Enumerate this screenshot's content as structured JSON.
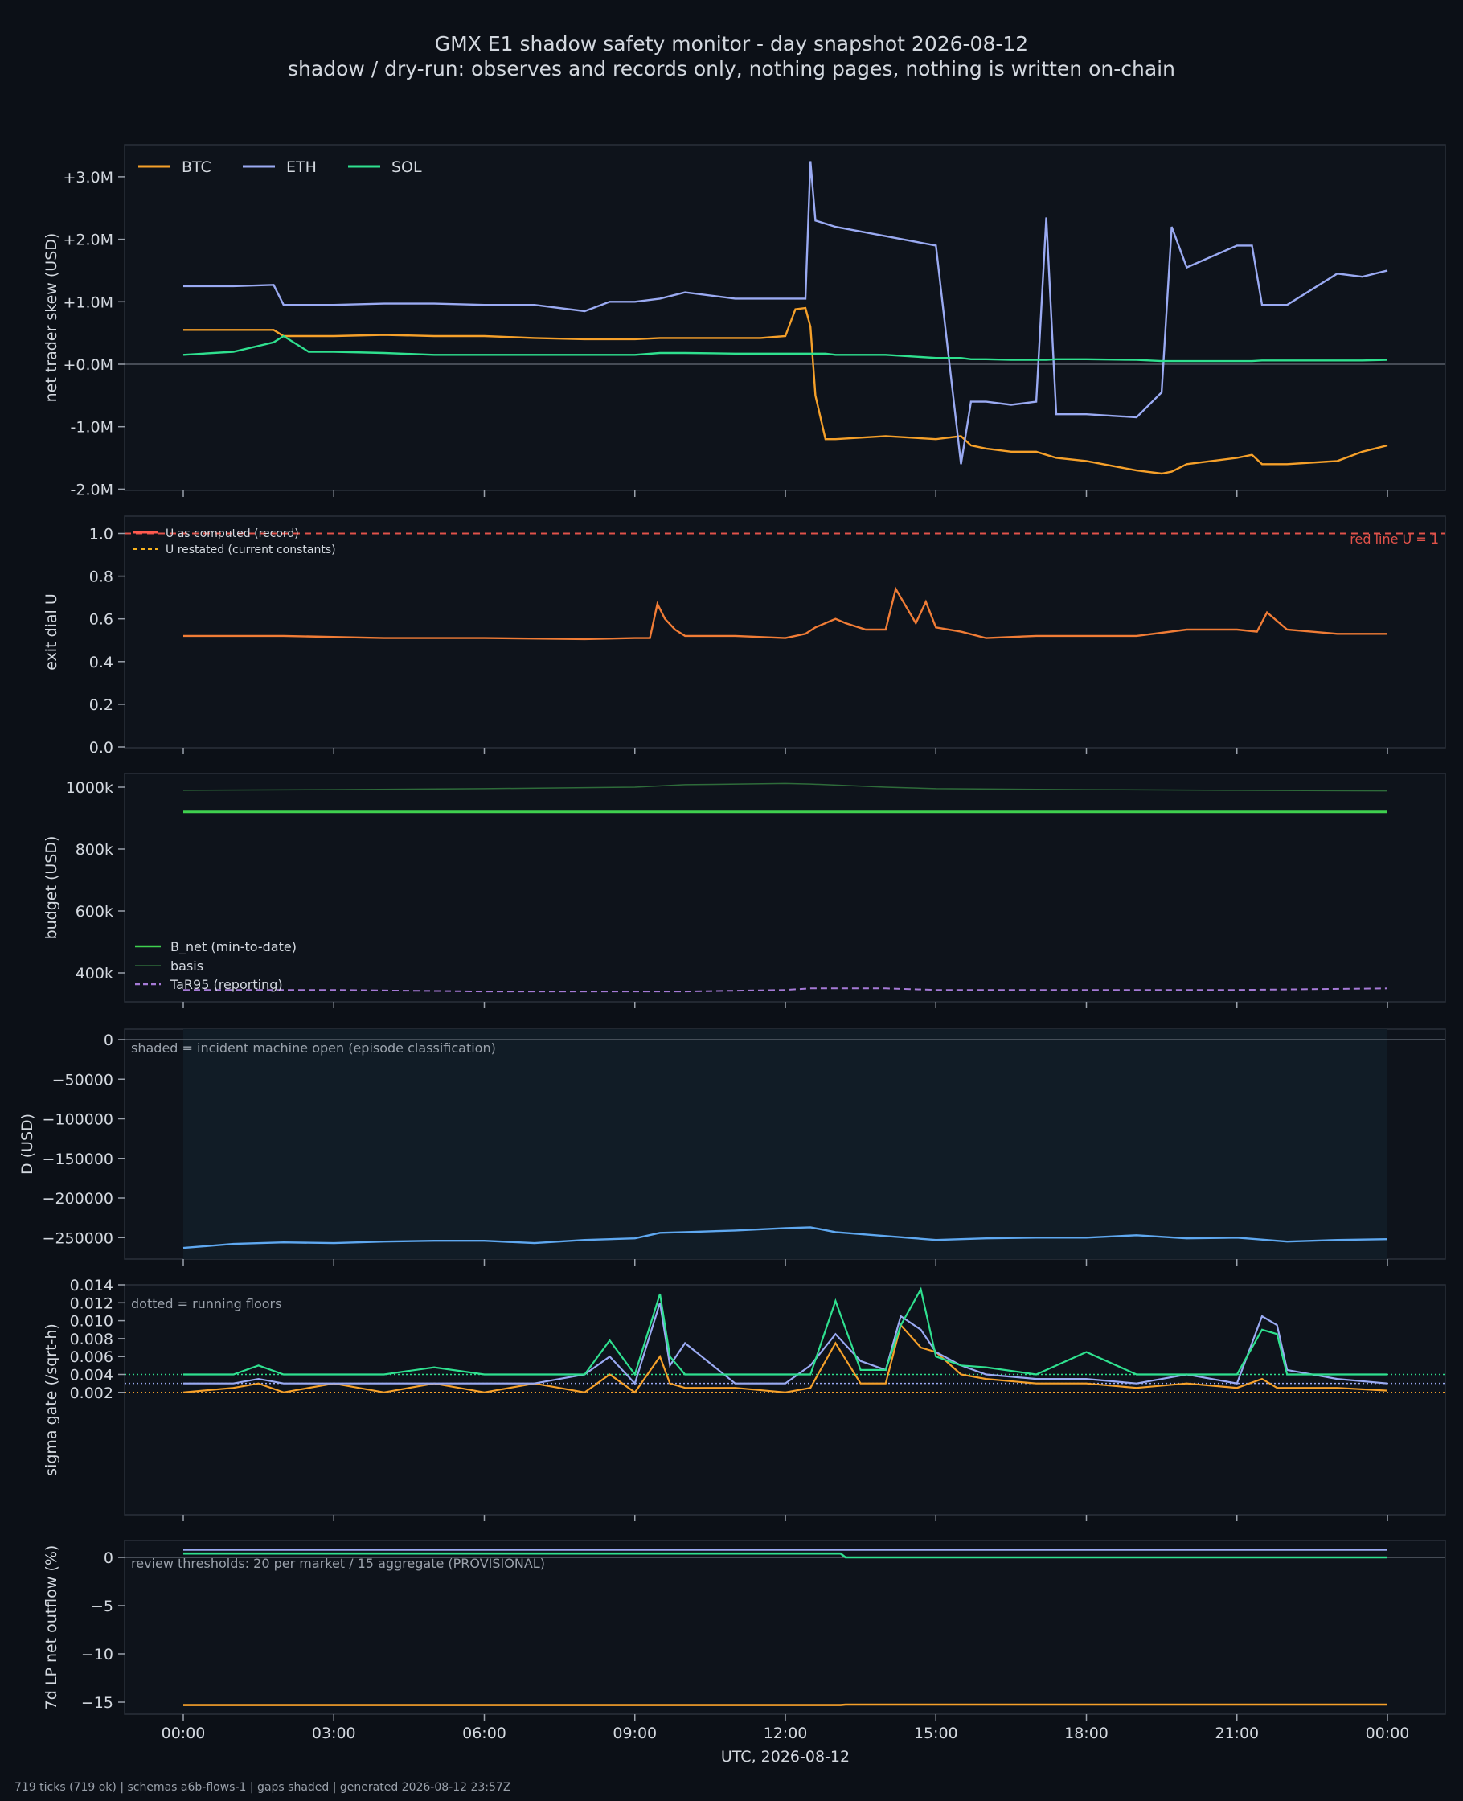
{
  "header": {
    "title": "GMX E1 shadow safety monitor - day snapshot 2026-08-12",
    "subtitle": "shadow / dry-run: observes and records only, nothing pages, nothing is written on-chain"
  },
  "footer": {
    "text": "719 ticks (719 ok) | schemas a6b-flows-1 | gaps shaded | generated 2026-08-12 23:57Z"
  },
  "colors": {
    "background": "#0c1017",
    "panel": "#0e131b",
    "btc": "#f5a02a",
    "eth": "#9aaaf2",
    "sol": "#2fe08f",
    "u_record": "#ff5a4e",
    "u_restated": "#f7b21e",
    "u_line": "#f07c36",
    "bnet": "#3fd04f",
    "basis": "#2e6b3a",
    "tar95": "#a57ad6",
    "d_line": "#5fa8f0",
    "redline": "#e0524a"
  },
  "chart_data": [
    {
      "type": "line",
      "ylabel": "net trader skew (USD)",
      "yticks": [
        "+3.0M",
        "+2.0M",
        "+1.0M",
        "+0.0M",
        "-1.0M",
        "-2.0M"
      ],
      "ylim": [
        -2.0,
        3.4
      ],
      "legend": [
        "BTC",
        "ETH",
        "SOL"
      ],
      "legend_placement": "top-left",
      "x_hours": [
        0,
        1,
        1.8,
        2,
        2.5,
        3,
        4,
        5,
        6,
        7,
        8,
        8.5,
        9,
        9.5,
        10,
        11,
        11.5,
        12,
        12.2,
        12.4,
        12.5,
        12.6,
        12.8,
        13,
        14,
        15,
        15.5,
        15.7,
        16,
        16.5,
        17,
        17.2,
        17.4,
        18,
        19,
        19.5,
        19.7,
        20,
        21,
        21.3,
        21.5,
        22,
        23,
        23.5,
        24
      ],
      "series": [
        {
          "name": "BTC",
          "values": [
            0.55,
            0.55,
            0.55,
            0.45,
            0.45,
            0.45,
            0.47,
            0.45,
            0.45,
            0.42,
            0.4,
            0.4,
            0.4,
            0.42,
            0.42,
            0.42,
            0.42,
            0.45,
            0.88,
            0.9,
            0.6,
            -0.5,
            -1.2,
            -1.2,
            -1.15,
            -1.2,
            -1.15,
            -1.3,
            -1.35,
            -1.4,
            -1.4,
            -1.45,
            -1.5,
            -1.55,
            -1.7,
            -1.75,
            -1.72,
            -1.6,
            -1.5,
            -1.45,
            -1.6,
            -1.6,
            -1.55,
            -1.4,
            -1.3
          ]
        },
        {
          "name": "ETH",
          "values": [
            1.25,
            1.25,
            1.27,
            0.95,
            0.95,
            0.95,
            0.97,
            0.97,
            0.95,
            0.95,
            0.85,
            1.0,
            1.0,
            1.05,
            1.15,
            1.05,
            1.05,
            1.05,
            1.05,
            1.05,
            3.25,
            2.3,
            2.25,
            2.2,
            2.05,
            1.9,
            -1.6,
            -0.6,
            -0.6,
            -0.65,
            -0.6,
            2.35,
            -0.8,
            -0.8,
            -0.85,
            -0.45,
            2.2,
            1.55,
            1.9,
            1.9,
            0.95,
            0.95,
            1.45,
            1.4,
            1.5
          ]
        },
        {
          "name": "SOL",
          "values": [
            0.15,
            0.2,
            0.35,
            0.45,
            0.2,
            0.2,
            0.18,
            0.15,
            0.15,
            0.15,
            0.15,
            0.15,
            0.15,
            0.18,
            0.18,
            0.17,
            0.17,
            0.17,
            0.17,
            0.17,
            0.17,
            0.17,
            0.17,
            0.15,
            0.15,
            0.1,
            0.1,
            0.08,
            0.08,
            0.07,
            0.07,
            0.07,
            0.08,
            0.08,
            0.07,
            0.05,
            0.05,
            0.05,
            0.05,
            0.05,
            0.06,
            0.06,
            0.06,
            0.06,
            0.07
          ]
        }
      ]
    },
    {
      "type": "line",
      "ylabel": "exit dial U",
      "yticks": [
        "1.0",
        "0.8",
        "0.6",
        "0.4",
        "0.2",
        "0.0"
      ],
      "ylim": [
        0.0,
        1.05
      ],
      "legend": [
        "U as computed (record)",
        "U restated (current constants)"
      ],
      "legend_placement": "top-left",
      "annotation": "red line U = 1",
      "x_hours": [
        0,
        2,
        4,
        6,
        8,
        9,
        9.3,
        9.45,
        9.6,
        9.8,
        10,
        11,
        12,
        12.4,
        12.6,
        13,
        13.2,
        13.6,
        14,
        14.2,
        14.4,
        14.6,
        14.8,
        15,
        15.5,
        16,
        17,
        18,
        19,
        20,
        21,
        21.4,
        21.6,
        22,
        23,
        24
      ],
      "series": [
        {
          "name": "U",
          "values": [
            0.52,
            0.52,
            0.51,
            0.51,
            0.505,
            0.51,
            0.51,
            0.67,
            0.6,
            0.55,
            0.52,
            0.52,
            0.51,
            0.53,
            0.56,
            0.6,
            0.58,
            0.55,
            0.55,
            0.74,
            0.66,
            0.58,
            0.68,
            0.56,
            0.54,
            0.51,
            0.52,
            0.52,
            0.52,
            0.55,
            0.55,
            0.54,
            0.63,
            0.55,
            0.53,
            0.53
          ]
        }
      ]
    },
    {
      "type": "line",
      "ylabel": "budget (USD)",
      "yticks": [
        "1000k",
        "800k",
        "600k",
        "400k"
      ],
      "ylim": [
        340,
        1020
      ],
      "legend": [
        "B_net (min-to-date)",
        "basis",
        "TaR95 (reporting)"
      ],
      "legend_placement": "bottom-left",
      "x_hours": [
        0,
        3,
        6,
        9,
        10,
        12,
        12.5,
        14,
        15,
        18,
        21,
        24
      ],
      "series": [
        {
          "name": "B_net (min-to-date)",
          "values": [
            920,
            920,
            920,
            920,
            920,
            920,
            920,
            920,
            920,
            920,
            920,
            920
          ]
        },
        {
          "name": "basis",
          "values": [
            990,
            992,
            995,
            1000,
            1008,
            1012,
            1010,
            1000,
            995,
            992,
            990,
            988
          ]
        },
        {
          "name": "TaR95 (reporting)",
          "values": [
            345,
            345,
            340,
            340,
            340,
            345,
            350,
            350,
            345,
            345,
            345,
            350
          ]
        }
      ]
    },
    {
      "type": "line",
      "ylabel": "D (USD)",
      "yticks": [
        "0",
        "−50000",
        "−100000",
        "−150000",
        "−200000",
        "−250000"
      ],
      "ylim": [
        -277000,
        0
      ],
      "annotation": "shaded = incident machine open (episode classification)",
      "x_hours": [
        0,
        1,
        2,
        3,
        4,
        5,
        6,
        7,
        8,
        9,
        9.5,
        10,
        11,
        12,
        12.5,
        13,
        14,
        15,
        16,
        17,
        18,
        19,
        20,
        21,
        22,
        23,
        24
      ],
      "series": [
        {
          "name": "D",
          "values": [
            -263000,
            -258000,
            -256000,
            -257000,
            -255000,
            -254000,
            -254000,
            -257000,
            -253000,
            -251000,
            -244000,
            -243000,
            -241000,
            -238000,
            -237000,
            -243000,
            -248000,
            -253000,
            -251000,
            -250000,
            -250000,
            -247000,
            -251000,
            -250000,
            -255000,
            -253000,
            -252000
          ]
        }
      ]
    },
    {
      "type": "line",
      "ylabel": "sigma gate (/sqrt-h)",
      "yticks": [
        "0.014",
        "0.012",
        "0.010",
        "0.008",
        "0.006",
        "0.004",
        "0.002"
      ],
      "ylim": [
        0.0015,
        0.014
      ],
      "annotation": "dotted = running floors",
      "floors": {
        "SOL": 0.004,
        "ETH": 0.003,
        "BTC": 0.002
      },
      "x_hours": [
        0,
        1,
        1.5,
        2,
        3,
        4,
        5,
        6,
        7,
        8,
        8.5,
        9,
        9.5,
        9.7,
        10,
        11,
        12,
        12.5,
        13,
        13.5,
        14,
        14.3,
        14.7,
        15,
        15.5,
        16,
        17,
        18,
        19,
        20,
        21,
        21.5,
        21.8,
        22,
        23,
        24
      ],
      "series": [
        {
          "name": "BTC",
          "values": [
            0.002,
            0.0025,
            0.003,
            0.002,
            0.003,
            0.002,
            0.003,
            0.002,
            0.003,
            0.002,
            0.004,
            0.002,
            0.006,
            0.003,
            0.0025,
            0.0025,
            0.002,
            0.0025,
            0.0075,
            0.003,
            0.003,
            0.0095,
            0.007,
            0.0065,
            0.004,
            0.0035,
            0.003,
            0.003,
            0.0025,
            0.003,
            0.0025,
            0.0035,
            0.0025,
            0.0025,
            0.0025,
            0.0022
          ]
        },
        {
          "name": "ETH",
          "values": [
            0.003,
            0.003,
            0.0035,
            0.003,
            0.003,
            0.003,
            0.003,
            0.003,
            0.003,
            0.004,
            0.006,
            0.003,
            0.012,
            0.005,
            0.0075,
            0.003,
            0.003,
            0.005,
            0.0085,
            0.0055,
            0.0045,
            0.0105,
            0.009,
            0.0065,
            0.005,
            0.004,
            0.0035,
            0.0035,
            0.003,
            0.004,
            0.003,
            0.0105,
            0.0095,
            0.0045,
            0.0035,
            0.003
          ]
        },
        {
          "name": "SOL",
          "values": [
            0.004,
            0.004,
            0.005,
            0.004,
            0.004,
            0.004,
            0.0048,
            0.004,
            0.004,
            0.004,
            0.0078,
            0.004,
            0.013,
            0.006,
            0.004,
            0.004,
            0.004,
            0.004,
            0.0122,
            0.0045,
            0.0045,
            0.0095,
            0.0135,
            0.006,
            0.005,
            0.0048,
            0.004,
            0.0065,
            0.004,
            0.004,
            0.004,
            0.009,
            0.0085,
            0.004,
            0.004,
            0.004
          ]
        }
      ]
    },
    {
      "type": "line",
      "ylabel": "7d LP net outflow (%)",
      "yticks": [
        "0",
        "−5",
        "−10",
        "−15"
      ],
      "ylim": [
        -15.8,
        1.6
      ],
      "annotation": "review thresholds: 20 per market / 15 aggregate (PROVISIONAL)",
      "x_hours": [
        0,
        13.1,
        13.2,
        24
      ],
      "series": [
        {
          "name": "ETH",
          "values": [
            0.8,
            0.8,
            0.8,
            0.8
          ]
        },
        {
          "name": "SOL",
          "values": [
            0.4,
            0.4,
            0.0,
            0.0
          ]
        },
        {
          "name": "BTC",
          "values": [
            -15.3,
            -15.3,
            -15.25,
            -15.25
          ]
        }
      ]
    }
  ],
  "xaxis": {
    "ticks": [
      "00:00",
      "03:00",
      "06:00",
      "09:00",
      "12:00",
      "15:00",
      "18:00",
      "21:00",
      "00:00"
    ],
    "label": "UTC, 2026-08-12"
  }
}
